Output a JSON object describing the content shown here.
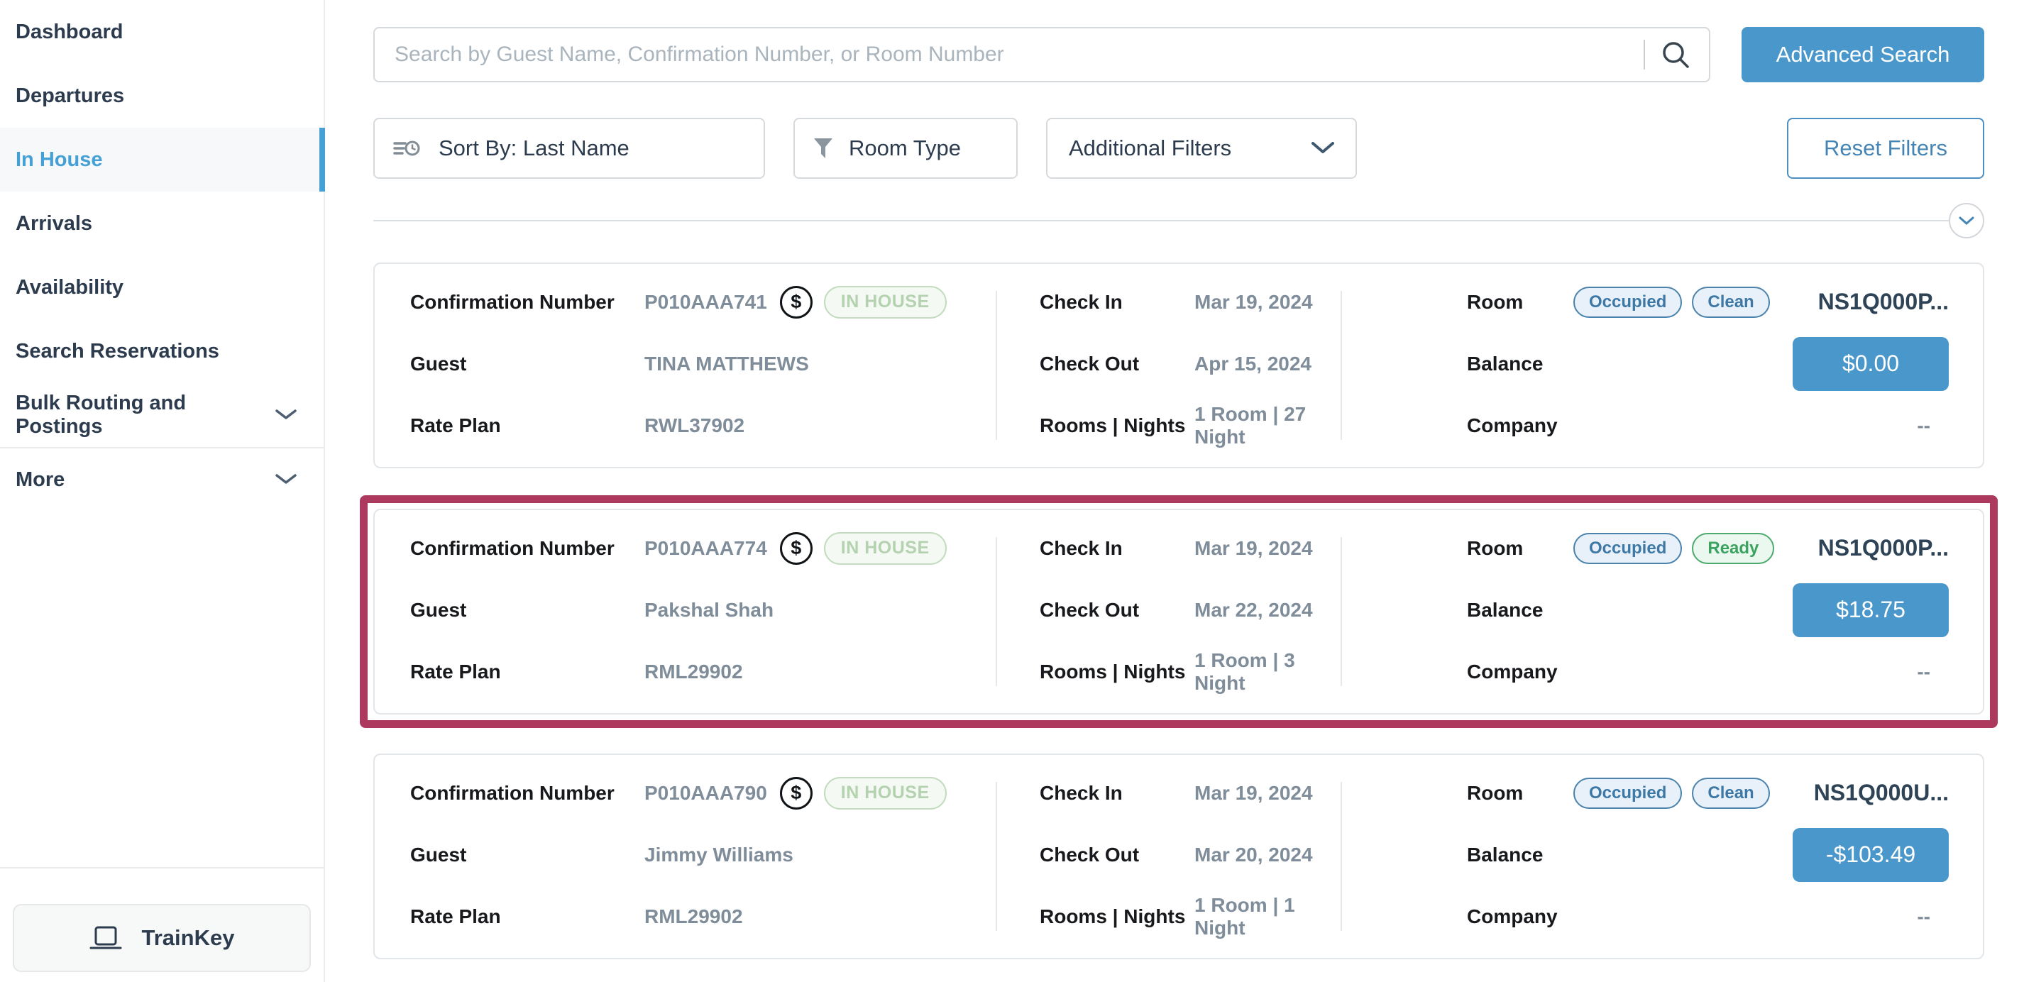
{
  "colors": {
    "accent_blue": "#4a97cb",
    "active_nav_blue": "#45a0d6",
    "highlight_outline": "#ad3a5e",
    "badge_blue": "#3e79a6",
    "badge_green": "#3ba35f",
    "in_house_badge_green": "#b5d2b0",
    "reset_border_blue": "#4c8fc2"
  },
  "sidebar": {
    "items": [
      {
        "label": "Dashboard"
      },
      {
        "label": "Departures"
      },
      {
        "label": "In House",
        "active": true
      },
      {
        "label": "Arrivals"
      },
      {
        "label": "Availability"
      },
      {
        "label": "Search Reservations"
      },
      {
        "label": "Bulk Routing and Postings",
        "chevron": true
      },
      {
        "label": "More",
        "chevron": true,
        "divider_above": true
      }
    ],
    "trainkey_label": "TrainKey"
  },
  "search": {
    "placeholder": "Search by Guest Name, Confirmation Number, or Room Number",
    "advanced_button_label": "Advanced Search"
  },
  "filters": {
    "sort_by_label": "Sort By: Last Name",
    "room_type_label": "Room Type",
    "additional_filters_label": "Additional Filters",
    "reset_button_label": "Reset Filters"
  },
  "labels": {
    "confirmation": "Confirmation Number",
    "guest": "Guest",
    "rate_plan": "Rate Plan",
    "check_in": "Check In",
    "check_out": "Check Out",
    "rooms_nights": "Rooms | Nights",
    "room": "Room",
    "balance": "Balance",
    "company": "Company",
    "currency": "$"
  },
  "icons": {
    "search": "magnifier",
    "sort": "speed-lines-clock",
    "room_type": "funnel",
    "additional_filters": "chevron-down",
    "list_collapse": "chevron-down-circle",
    "payment": "dollar-circle",
    "trainkey": "laptop",
    "nav_expand": "chevron-down"
  },
  "reservations": [
    {
      "confirmation": "P010AAA741",
      "status": "IN HOUSE",
      "guest": "TINA MATTHEWS",
      "rate_plan": "RWL37902",
      "check_in": "Mar 19, 2024",
      "check_out": "Apr 15, 2024",
      "rooms_nights": "1 Room | 27 Night",
      "room_badges": [
        "Occupied",
        "Clean"
      ],
      "room_number": "NS1Q000P...",
      "balance": "$0.00",
      "company": "--",
      "highlighted": false
    },
    {
      "confirmation": "P010AAA774",
      "status": "IN HOUSE",
      "guest": "Pakshal Shah",
      "rate_plan": "RML29902",
      "check_in": "Mar 19, 2024",
      "check_out": "Mar 22, 2024",
      "rooms_nights": "1 Room | 3 Night",
      "room_badges": [
        "Occupied",
        "Ready"
      ],
      "room_number": "NS1Q000P...",
      "balance": "$18.75",
      "company": "--",
      "highlighted": true
    },
    {
      "confirmation": "P010AAA790",
      "status": "IN HOUSE",
      "guest": "Jimmy Williams",
      "rate_plan": "RML29902",
      "check_in": "Mar 19, 2024",
      "check_out": "Mar 20, 2024",
      "rooms_nights": "1 Room | 1 Night",
      "room_badges": [
        "Occupied",
        "Clean"
      ],
      "room_number": "NS1Q000U...",
      "balance": "-$103.49",
      "company": "--",
      "highlighted": false
    }
  ]
}
